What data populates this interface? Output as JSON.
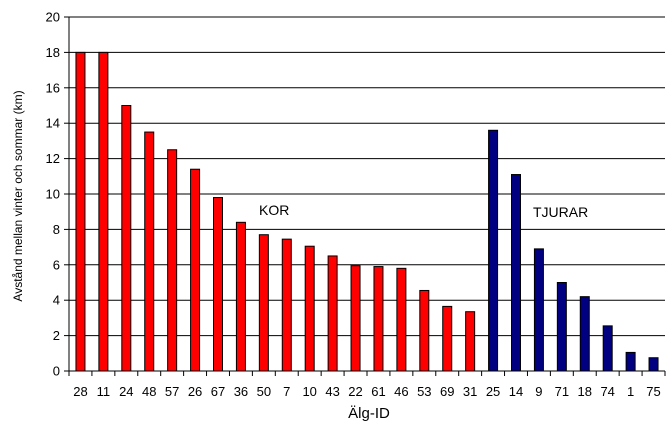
{
  "chart_data": {
    "type": "bar",
    "title": "",
    "xlabel": "Älg-ID",
    "ylabel": "Avstånd mellan vinter och sommar (km)",
    "ylim": [
      0,
      20
    ],
    "yticks": [
      0,
      2,
      4,
      6,
      8,
      10,
      12,
      14,
      16,
      18,
      20
    ],
    "grid": true,
    "legend": "none",
    "categories": [
      "28",
      "11",
      "24",
      "48",
      "57",
      "26",
      "67",
      "36",
      "50",
      "7",
      "10",
      "43",
      "22",
      "61",
      "46",
      "53",
      "69",
      "31",
      "25",
      "14",
      "9",
      "71",
      "18",
      "74",
      "1",
      "75"
    ],
    "values": [
      18.0,
      18.0,
      15.0,
      13.5,
      12.5,
      11.4,
      9.8,
      8.4,
      7.7,
      7.45,
      7.05,
      6.5,
      5.95,
      5.9,
      5.8,
      4.55,
      3.65,
      3.35,
      13.6,
      11.1,
      6.9,
      5.0,
      4.2,
      2.55,
      1.05,
      0.75
    ],
    "groups": [
      {
        "label": "KOR",
        "color": "#ff0000",
        "start": 0,
        "count": 18
      },
      {
        "label": "TJURAR",
        "color": "#000080",
        "start": 18,
        "count": 8
      }
    ]
  }
}
